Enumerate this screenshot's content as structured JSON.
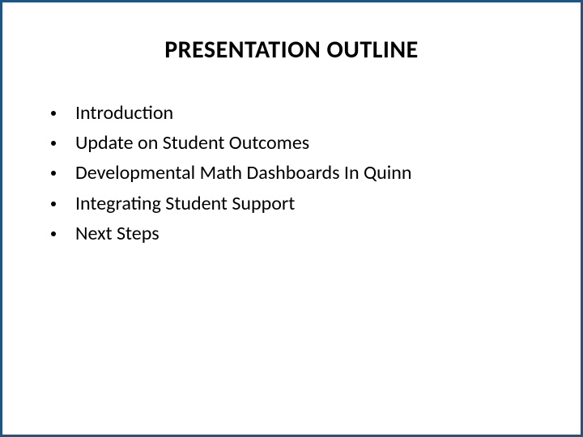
{
  "slide": {
    "title": "PRESENTATION OUTLINE",
    "border_color": "#1f5582",
    "background_color": "#ffffff",
    "title_fontsize": 30,
    "title_color": "#000000",
    "bullet_fontsize": 24,
    "bullet_color": "#000000",
    "bullets": [
      "Introduction",
      "Update on Student Outcomes",
      "Developmental Math Dashboards In Quinn",
      "Integrating Student Support",
      "Next Steps"
    ]
  }
}
